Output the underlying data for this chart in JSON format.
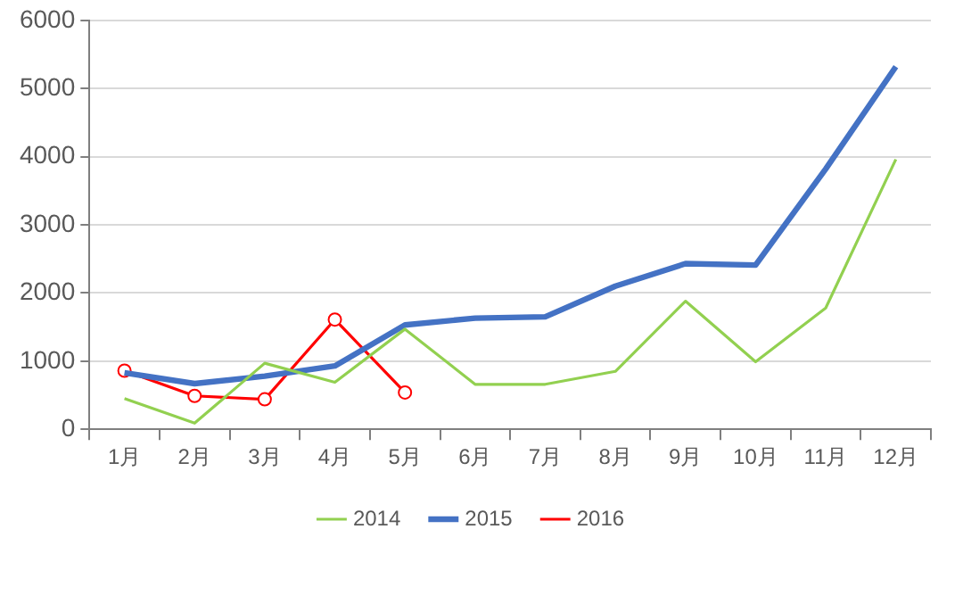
{
  "chart_data": {
    "type": "line",
    "categories": [
      "1月",
      "2月",
      "3月",
      "4月",
      "5月",
      "6月",
      "7月",
      "8月",
      "9月",
      "10月",
      "11月",
      "12月"
    ],
    "series": [
      {
        "name": "2014",
        "color": "#92d050",
        "values": [
          450,
          90,
          970,
          690,
          1470,
          660,
          660,
          850,
          1880,
          990,
          1780,
          3960
        ]
      },
      {
        "name": "2015",
        "color": "#4472c4",
        "values": [
          830,
          670,
          780,
          930,
          1530,
          1630,
          1650,
          2100,
          2430,
          2410,
          3820,
          5320
        ]
      },
      {
        "name": "2016",
        "color": "#ff0000",
        "marker": "circle",
        "values": [
          860,
          490,
          440,
          1610,
          540,
          null,
          null,
          null,
          null,
          null,
          null,
          null
        ]
      }
    ],
    "ylim": [
      0,
      6000
    ],
    "yticks": [
      0,
      1000,
      2000,
      3000,
      4000,
      5000,
      6000
    ],
    "grid": "y",
    "legend": "bottom",
    "marker": "none",
    "line_style": "solid"
  }
}
